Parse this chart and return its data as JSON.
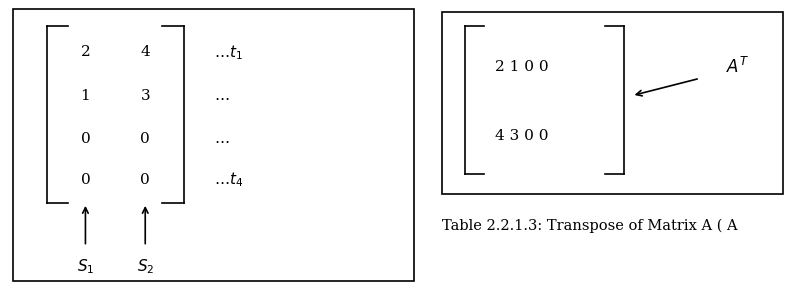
{
  "left_box": {
    "matrix_values": [
      [
        "2",
        "4"
      ],
      [
        "1",
        "3"
      ],
      [
        "0",
        "0"
      ],
      [
        "0",
        "0"
      ]
    ],
    "col_labels_text": [
      "$S_1$",
      "$S_2$"
    ],
    "row_labels_text": [
      "$\\ldots t_1$",
      "$\\ldots$",
      "$\\ldots$",
      "$\\ldots t_4$"
    ]
  },
  "right_box": {
    "matrix_row1": "2 1 0 0",
    "matrix_row2": "4 3 0 0",
    "caption": "Table 2.2.1.3: Transpose of Matrix A ( A"
  },
  "bg_color": "#ffffff",
  "border_color": "#000000",
  "text_color": "#000000",
  "font_size": 11,
  "caption_font_size": 10.5
}
